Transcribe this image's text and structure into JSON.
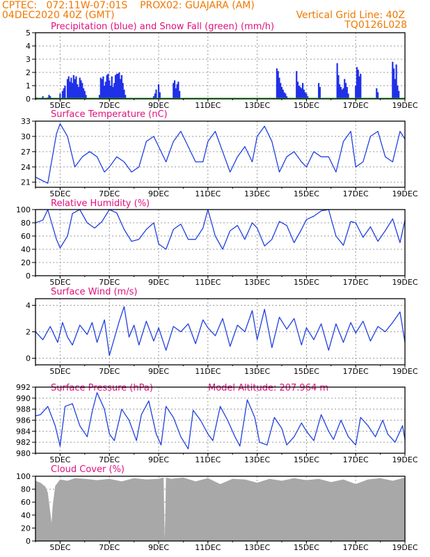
{
  "header": {
    "line1": "CPTEC:   072:11W-07:01S    PROX02: GUAJARA (AM)",
    "line2_left": "04DEC2020 40Z (GMT)",
    "line2_right": "Vertical Grid Line: 40Z",
    "line3_right": "TQ0126L028"
  },
  "x_ticks": [
    "5DEC",
    "7DEC",
    "9DEC",
    "11DEC",
    "13DEC",
    "15DEC",
    "17DEC",
    "19DEC"
  ],
  "colors": {
    "header": "#f07800",
    "title": "#e0107c",
    "line": "#2040e0",
    "precip": "#2030e8",
    "snow": "#10b010",
    "cloud": "#a8a8a8",
    "grid": "#9a9a9a"
  },
  "chart_data": [
    {
      "type": "bar",
      "title": "Precipitation (blue) and Snow Fall (green) (mm/h)",
      "ylim": [
        0,
        5
      ],
      "yticks": [
        "0",
        "1",
        "2",
        "3",
        "4",
        "5"
      ],
      "x_range_days": [
        4.0,
        19.0
      ],
      "series": [
        {
          "name": "Precipitation",
          "x": [
            4.05,
            4.3,
            4.5,
            4.55,
            4.6,
            5.0,
            5.1,
            5.15,
            5.2,
            5.3,
            5.35,
            5.4,
            5.45,
            5.5,
            5.55,
            5.6,
            5.65,
            5.7,
            5.75,
            5.8,
            5.85,
            5.9,
            5.95,
            6.0,
            6.05,
            6.6,
            6.65,
            6.7,
            6.75,
            6.8,
            6.85,
            6.9,
            6.95,
            7.0,
            7.05,
            7.1,
            7.15,
            7.2,
            7.25,
            7.3,
            7.35,
            7.4,
            7.45,
            7.5,
            7.55,
            7.6,
            7.65,
            8.8,
            8.85,
            8.9,
            9.0,
            9.05,
            9.6,
            9.65,
            9.7,
            9.75,
            9.8,
            9.85,
            13.8,
            13.85,
            13.9,
            13.95,
            14.0,
            14.05,
            14.1,
            14.15,
            14.2,
            14.6,
            14.65,
            14.7,
            14.75,
            14.8,
            14.85,
            14.9,
            14.95,
            15.0,
            15.05,
            15.5,
            15.55,
            16.25,
            16.3,
            16.35,
            16.4,
            16.45,
            16.5,
            16.55,
            16.6,
            16.65,
            16.7,
            17.0,
            17.05,
            17.1,
            17.15,
            17.2,
            17.85,
            17.9,
            18.5,
            18.55,
            18.6,
            18.65,
            18.7,
            18.75
          ],
          "values": [
            0.1,
            0.2,
            0.1,
            0.3,
            0.2,
            0.4,
            0.6,
            0.8,
            1.0,
            1.5,
            1.7,
            1.3,
            1.6,
            1.2,
            1.8,
            1.5,
            1.7,
            1.1,
            0.9,
            1.6,
            1.4,
            1.2,
            0.8,
            0.6,
            0.3,
            0.3,
            1.6,
            1.5,
            1.7,
            1.0,
            1.3,
            1.8,
            1.9,
            1.4,
            1.0,
            1.7,
            0.9,
            1.2,
            1.8,
            1.9,
            1.9,
            2.0,
            1.5,
            1.8,
            1.2,
            0.7,
            0.3,
            0.2,
            0.4,
            0.7,
            1.1,
            0.5,
            1.2,
            1.4,
            0.8,
            1.1,
            1.3,
            0.6,
            2.3,
            2.1,
            1.6,
            1.2,
            0.9,
            0.7,
            0.5,
            0.4,
            0.2,
            2.1,
            1.3,
            1.0,
            0.9,
            0.8,
            1.2,
            0.7,
            0.5,
            0.4,
            0.2,
            1.2,
            0.9,
            2.7,
            1.8,
            1.1,
            0.9,
            0.7,
            0.8,
            1.5,
            1.2,
            0.9,
            0.4,
            1.0,
            2.4,
            2.2,
            1.7,
            1.9,
            0.8,
            0.5,
            2.8,
            2.3,
            1.5,
            2.6,
            1.0,
            0.6
          ]
        },
        {
          "name": "Snow Fall",
          "x": [
            4.0,
            19.0
          ],
          "values": [
            0,
            0
          ]
        }
      ]
    },
    {
      "type": "line",
      "title": "Surface Temperature (nC)",
      "ylim": [
        20,
        33
      ],
      "yticks": [
        "21",
        "24",
        "27",
        "30",
        "33"
      ],
      "series": [
        {
          "name": "Temperature",
          "x": [
            4.0,
            4.2,
            4.5,
            4.85,
            5.0,
            5.3,
            5.6,
            5.9,
            6.2,
            6.5,
            6.8,
            7.0,
            7.3,
            7.6,
            7.9,
            8.2,
            8.5,
            8.8,
            9.0,
            9.3,
            9.6,
            9.9,
            10.2,
            10.5,
            10.8,
            11.0,
            11.3,
            11.6,
            11.9,
            12.2,
            12.5,
            12.8,
            13.0,
            13.3,
            13.6,
            13.9,
            14.2,
            14.5,
            14.8,
            15.0,
            15.3,
            15.6,
            15.9,
            16.2,
            16.5,
            16.8,
            17.0,
            17.3,
            17.6,
            17.9,
            18.2,
            18.5,
            18.8,
            19.0
          ],
          "values": [
            22,
            21.5,
            20.8,
            30.5,
            32.5,
            30,
            24,
            26,
            27,
            26,
            23,
            24,
            26,
            25,
            23,
            24,
            29,
            30,
            28,
            25,
            29,
            31,
            28,
            25,
            25,
            29,
            31,
            27,
            23,
            26,
            28,
            25,
            30,
            32,
            29,
            23,
            26,
            27,
            25,
            24,
            27,
            26,
            26,
            23,
            29,
            31,
            24,
            25,
            30,
            31,
            26,
            25,
            31,
            29.5
          ]
        }
      ]
    },
    {
      "type": "line",
      "title": "Relative Humidity (%)",
      "ylim": [
        0,
        100
      ],
      "yticks": [
        "0",
        "20",
        "40",
        "60",
        "80",
        "100"
      ],
      "series": [
        {
          "name": "Relative Humidity",
          "x": [
            4.0,
            4.3,
            4.5,
            4.85,
            5.0,
            5.3,
            5.5,
            5.8,
            6.1,
            6.4,
            6.7,
            7.0,
            7.3,
            7.6,
            7.9,
            8.2,
            8.5,
            8.8,
            9.0,
            9.3,
            9.6,
            9.9,
            10.2,
            10.5,
            10.8,
            11.0,
            11.3,
            11.6,
            11.9,
            12.2,
            12.5,
            12.8,
            13.0,
            13.3,
            13.6,
            13.9,
            14.2,
            14.5,
            14.8,
            15.0,
            15.3,
            15.6,
            15.9,
            16.2,
            16.5,
            16.8,
            17.0,
            17.3,
            17.6,
            17.9,
            18.2,
            18.5,
            18.8,
            19.0
          ],
          "values": [
            80,
            84,
            100,
            55,
            42,
            60,
            94,
            100,
            80,
            72,
            82,
            100,
            95,
            70,
            52,
            55,
            70,
            80,
            48,
            40,
            70,
            78,
            55,
            55,
            72,
            100,
            60,
            40,
            68,
            76,
            55,
            80,
            72,
            45,
            55,
            82,
            76,
            50,
            70,
            85,
            90,
            98,
            100,
            60,
            46,
            82,
            80,
            58,
            74,
            52,
            68,
            86,
            50,
            84
          ]
        }
      ]
    },
    {
      "type": "line",
      "title": "Surface Wind (m/s)",
      "ylim": [
        -0.5,
        4.5
      ],
      "yticks": [
        "0",
        "2",
        "4"
      ],
      "series": [
        {
          "name": "Wind speed",
          "x": [
            4.0,
            4.3,
            4.6,
            4.9,
            5.1,
            5.3,
            5.5,
            5.8,
            6.1,
            6.3,
            6.5,
            6.8,
            7.0,
            7.2,
            7.4,
            7.6,
            7.8,
            8.0,
            8.2,
            8.5,
            8.8,
            9.0,
            9.3,
            9.6,
            9.9,
            10.2,
            10.5,
            10.8,
            11.0,
            11.3,
            11.6,
            11.9,
            12.2,
            12.5,
            12.8,
            13.0,
            13.3,
            13.6,
            13.9,
            14.2,
            14.5,
            14.8,
            15.0,
            15.3,
            15.6,
            15.9,
            16.2,
            16.5,
            16.8,
            17.0,
            17.3,
            17.6,
            17.9,
            18.2,
            18.5,
            18.8,
            19.0
          ],
          "values": [
            2.0,
            1.4,
            2.4,
            1.2,
            2.7,
            1.6,
            1.0,
            2.5,
            1.8,
            2.7,
            1.2,
            2.9,
            0.2,
            1.5,
            2.8,
            3.9,
            1.6,
            2.5,
            1.0,
            2.8,
            1.3,
            2.3,
            0.6,
            2.4,
            2.0,
            2.6,
            1.1,
            2.9,
            2.3,
            1.7,
            3.0,
            0.9,
            2.5,
            2.0,
            3.6,
            1.4,
            3.7,
            0.8,
            3.1,
            2.2,
            3.0,
            1.0,
            2.3,
            1.4,
            2.6,
            0.6,
            2.6,
            1.2,
            2.7,
            1.9,
            2.8,
            1.3,
            2.4,
            2.0,
            2.7,
            3.5,
            1.2
          ]
        }
      ]
    },
    {
      "type": "line",
      "title": "Surface Pressure (hPa)",
      "annotation": "Model Altitude: 207.964  m",
      "ylim": [
        980,
        992
      ],
      "yticks": [
        "980",
        "982",
        "984",
        "986",
        "988",
        "990",
        "992"
      ],
      "series": [
        {
          "name": "Pressure",
          "x": [
            4.0,
            4.2,
            4.5,
            4.8,
            5.0,
            5.2,
            5.5,
            5.8,
            6.1,
            6.3,
            6.5,
            6.8,
            7.0,
            7.2,
            7.5,
            7.8,
            8.1,
            8.3,
            8.6,
            8.9,
            9.1,
            9.3,
            9.6,
            9.9,
            10.2,
            10.4,
            10.7,
            11.0,
            11.2,
            11.5,
            11.8,
            12.1,
            12.3,
            12.6,
            12.9,
            13.1,
            13.4,
            13.7,
            14.0,
            14.2,
            14.5,
            14.8,
            15.0,
            15.3,
            15.6,
            15.9,
            16.1,
            16.4,
            16.7,
            17.0,
            17.2,
            17.5,
            17.8,
            18.1,
            18.3,
            18.6,
            18.9,
            19.0
          ],
          "values": [
            986.8,
            987.0,
            988.5,
            985,
            981.3,
            988.5,
            989,
            985,
            983,
            987.5,
            991,
            988,
            983.5,
            982.3,
            988,
            986,
            982.3,
            987,
            989.5,
            983.5,
            981.5,
            988.5,
            986.5,
            983,
            980.8,
            987.8,
            986,
            983.5,
            982.3,
            988.5,
            986,
            983,
            981.3,
            989.7,
            986.5,
            982,
            981.5,
            986.5,
            984.5,
            981.5,
            983,
            985.5,
            984,
            982.3,
            987,
            984,
            982.5,
            986,
            983,
            981.5,
            986.5,
            985,
            983,
            986,
            983.5,
            982,
            985,
            982.5
          ]
        }
      ]
    },
    {
      "type": "area",
      "title": "Cloud Cover (%)",
      "ylim": [
        0,
        100
      ],
      "yticks": [
        "0",
        "20",
        "40",
        "60",
        "80",
        "100"
      ],
      "series": [
        {
          "name": "Cloud cover",
          "x": [
            4.0,
            4.2,
            4.4,
            4.5,
            4.6,
            4.65,
            4.7,
            4.8,
            5.0,
            5.3,
            5.6,
            6.0,
            6.5,
            7.0,
            7.5,
            8.0,
            8.5,
            9.0,
            9.2,
            9.25,
            9.3,
            9.5,
            10.0,
            10.5,
            11.0,
            11.5,
            12.0,
            12.5,
            13.0,
            13.5,
            14.0,
            14.5,
            15.0,
            15.5,
            16.0,
            16.5,
            17.0,
            17.5,
            18.0,
            18.5,
            18.8,
            19.0
          ],
          "values": [
            93,
            90,
            84,
            75,
            45,
            28,
            55,
            85,
            95,
            93,
            97,
            96,
            94,
            96,
            92,
            97,
            95,
            96,
            98,
            3,
            98,
            96,
            98,
            92,
            97,
            88,
            96,
            95,
            90,
            96,
            93,
            97,
            94,
            96,
            91,
            95,
            88,
            95,
            97,
            93,
            96,
            98
          ]
        }
      ]
    }
  ]
}
